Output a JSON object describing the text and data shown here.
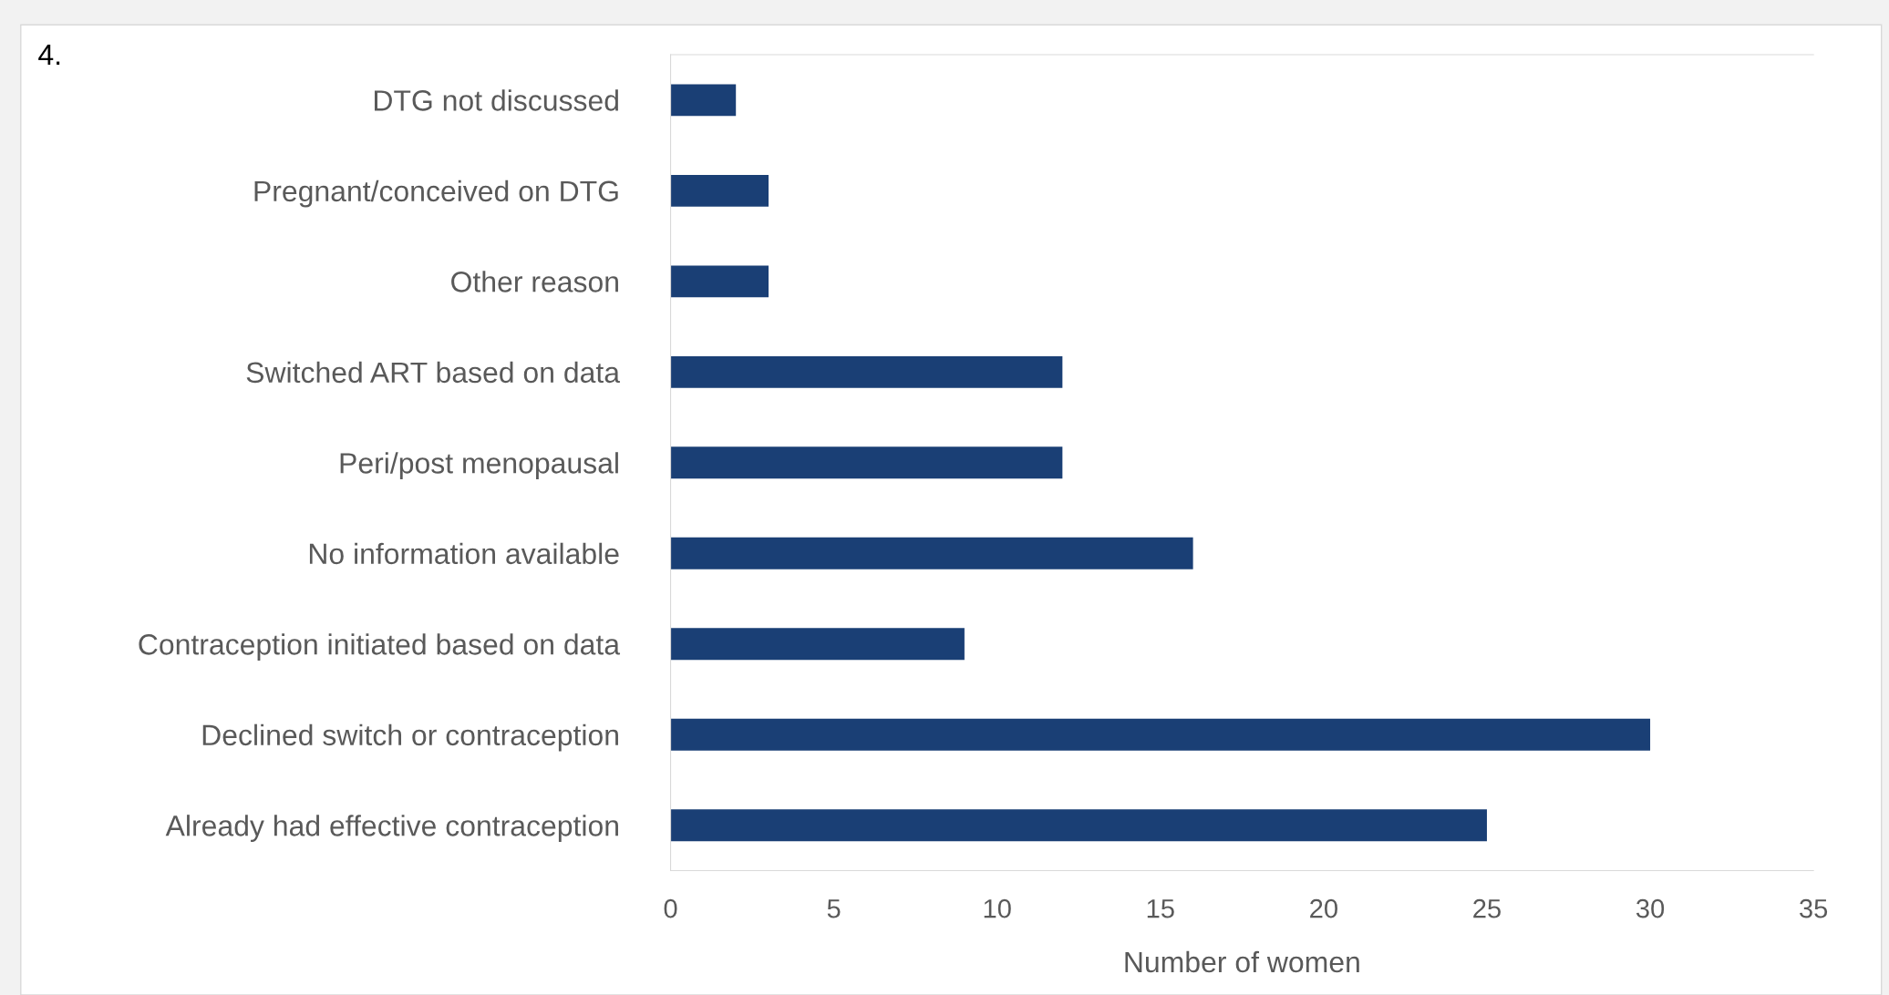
{
  "chart_data": {
    "type": "bar",
    "orientation": "horizontal",
    "xlabel": "Number of women",
    "annotations": [
      "4."
    ],
    "categories": [
      "DTG not discussed",
      "Pregnant/conceived on DTG",
      "Other reason",
      "Switched ART based on data",
      "Peri/post menopausal",
      "No information available",
      "Contraception initiated based on data",
      "Declined switch or contraception",
      "Already had effective contraception"
    ],
    "values": [
      2,
      3,
      3,
      12,
      12,
      16,
      9,
      30,
      25
    ],
    "color": "#1a3f75",
    "xlim": [
      0,
      35
    ],
    "xticks": [
      0,
      5,
      10,
      15,
      20,
      25,
      30,
      35
    ],
    "grid": false
  }
}
